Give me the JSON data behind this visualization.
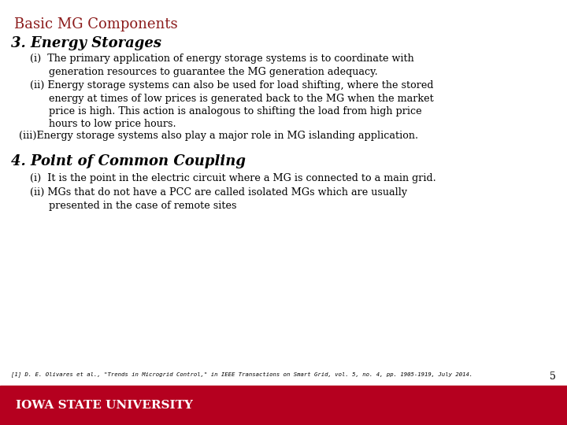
{
  "title": "Basic MG Components",
  "title_color": "#8B1A1A",
  "background_color": "#FFFFFF",
  "footer_color": "#B5001F",
  "footer_text": "Iowa State University",
  "page_number": "5",
  "section1_heading": "3. Energy Storages",
  "section2_heading": "4. Point of Common Coupling",
  "footnote": "[1] D. E. Olivares et al., \"Trends in Microgrid Control,\" in IEEE Transactions on Smart Grid, vol. 5, no. 4, pp. 1905-1919, July 2014."
}
